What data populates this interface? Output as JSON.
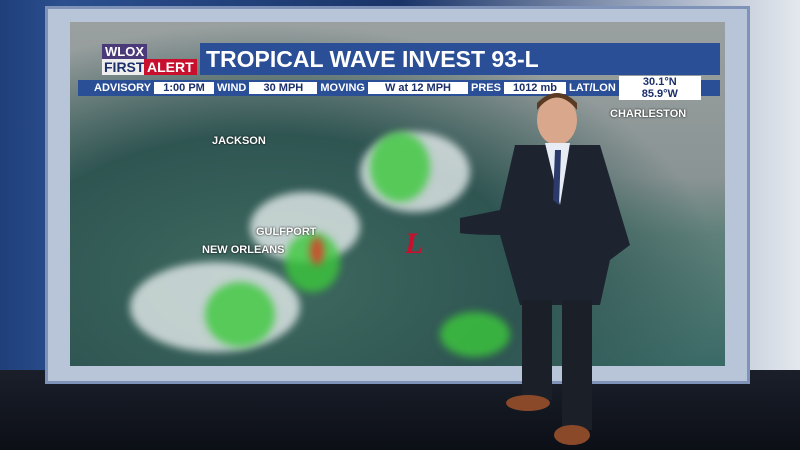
{
  "logo": {
    "line1": "WLOX",
    "line2a": "FIRST",
    "line2b": "ALERT"
  },
  "title": "TROPICAL WAVE INVEST 93-L",
  "info": {
    "advisory_label": "ADVISORY",
    "advisory": "1:00 PM",
    "wind_label": "WIND",
    "wind": "30 MPH",
    "moving_label": "MOVING",
    "moving": "W at 12 MPH",
    "pres_label": "PRES",
    "pres": "1012 mb",
    "latlon_label": "LAT/LON",
    "latlon": "30.1°N  85.9°W"
  },
  "map": {
    "cities": [
      "JACKSON",
      "CHARLESTON",
      "GULFPORT",
      "NEW ORLEANS"
    ],
    "low_marker": "L",
    "colors": {
      "low": "#c8102e",
      "rain": "#3cc83c",
      "storm": "#dc3c28",
      "banner": "#2a4f96"
    }
  }
}
